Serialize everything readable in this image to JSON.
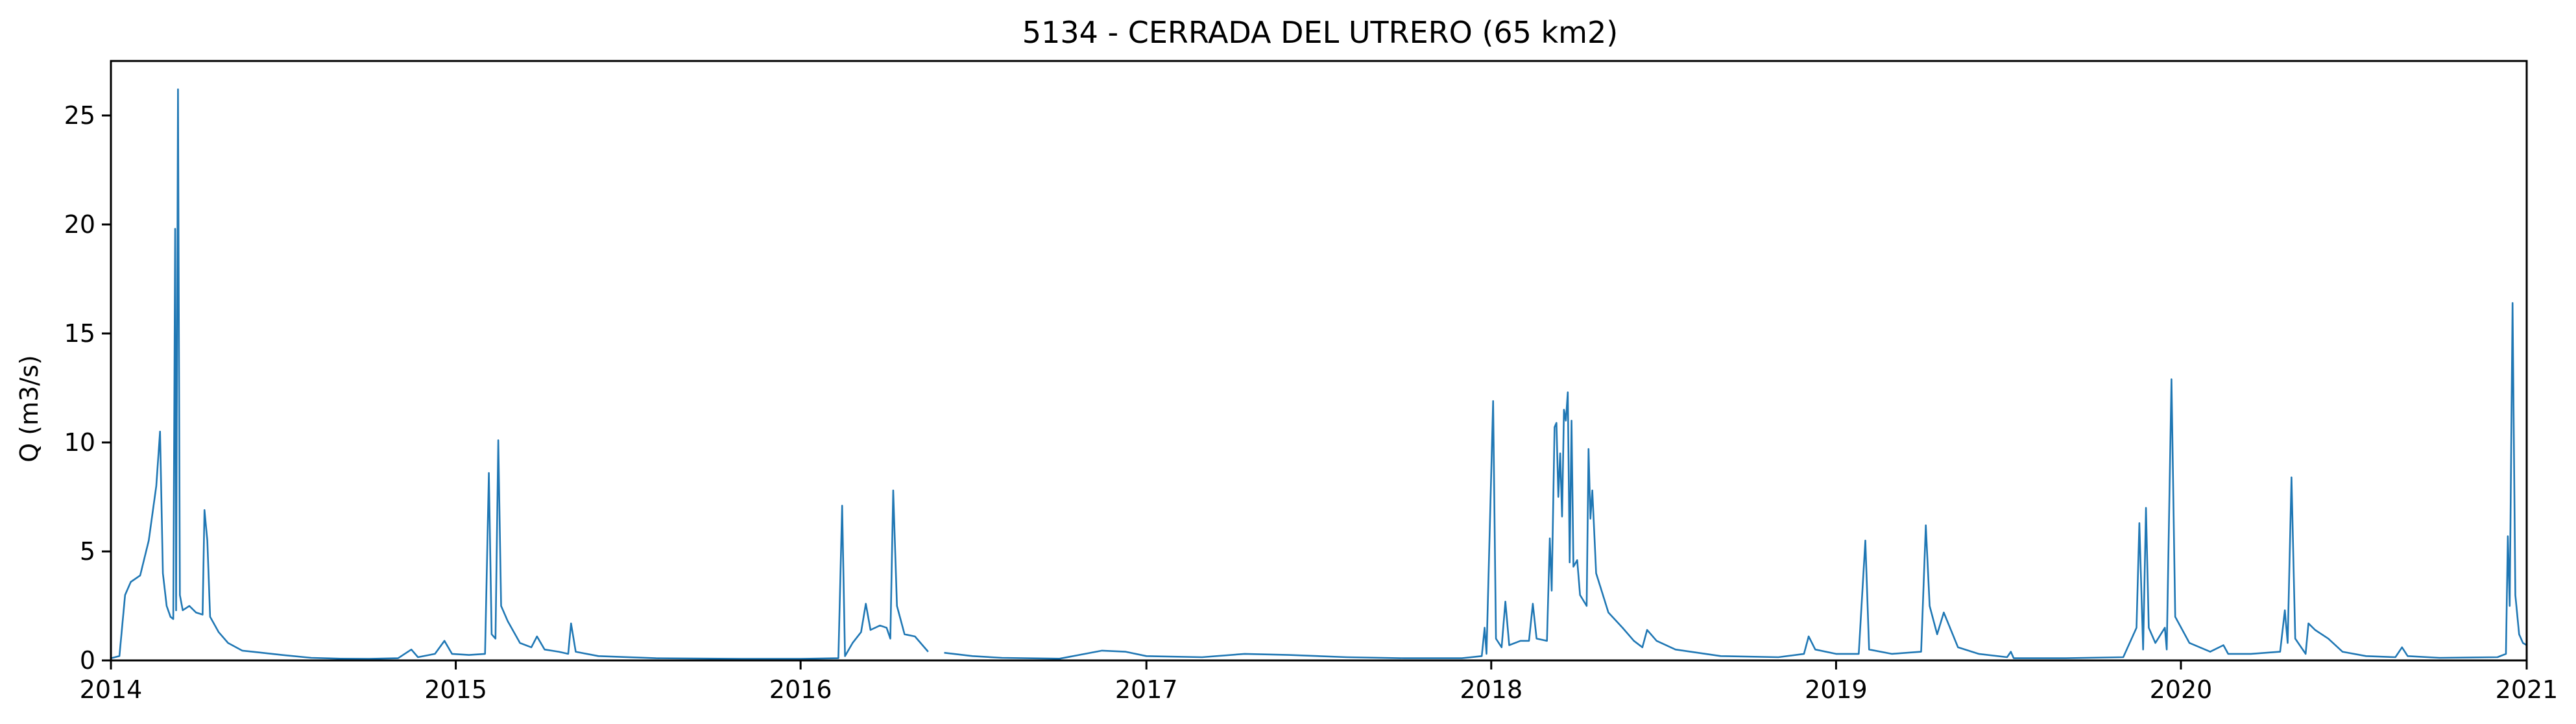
{
  "chart_data": {
    "type": "line",
    "title": "5134 - CERRADA DEL UTRERO (65 km2)",
    "xlabel": "",
    "ylabel": "Q (m3/s)",
    "xlim": [
      "2014-01-01",
      "2021-01-01"
    ],
    "ylim": [
      0,
      27.5
    ],
    "x_ticks": [
      "2014",
      "2015",
      "2016",
      "2017",
      "2018",
      "2019",
      "2020",
      "2021"
    ],
    "y_ticks": [
      0,
      5,
      10,
      15,
      20,
      25
    ],
    "grid": false,
    "color": "#1f77b4",
    "series": [
      {
        "points": [
          [
            "2014-01-01",
            0.1
          ],
          [
            "2014-01-10",
            0.2
          ],
          [
            "2014-01-16",
            3.0
          ],
          [
            "2014-01-22",
            3.6
          ],
          [
            "2014-02-01",
            3.9
          ],
          [
            "2014-02-10",
            5.5
          ],
          [
            "2014-02-18",
            8.0
          ],
          [
            "2014-02-22",
            10.5
          ],
          [
            "2014-02-25",
            4.0
          ],
          [
            "2014-03-01",
            2.5
          ],
          [
            "2014-03-05",
            2.0
          ],
          [
            "2014-03-08",
            1.9
          ],
          [
            "2014-03-10",
            19.8
          ],
          [
            "2014-03-11",
            2.3
          ],
          [
            "2014-03-13",
            26.2
          ],
          [
            "2014-03-15",
            3.0
          ],
          [
            "2014-03-18",
            2.3
          ],
          [
            "2014-03-25",
            2.5
          ],
          [
            "2014-04-01",
            2.2
          ],
          [
            "2014-04-08",
            2.1
          ],
          [
            "2014-04-10",
            6.9
          ],
          [
            "2014-04-13",
            5.5
          ],
          [
            "2014-04-16",
            2.0
          ],
          [
            "2014-04-25",
            1.3
          ],
          [
            "2014-05-05",
            0.8
          ],
          [
            "2014-05-20",
            0.45
          ],
          [
            "2014-06-10",
            0.35
          ],
          [
            "2014-07-01",
            0.25
          ],
          [
            "2014-08-01",
            0.12
          ],
          [
            "2014-09-01",
            0.08
          ],
          [
            "2014-10-01",
            0.07
          ],
          [
            "2014-11-01",
            0.1
          ],
          [
            "2014-11-15",
            0.5
          ],
          [
            "2014-11-22",
            0.15
          ],
          [
            "2014-12-10",
            0.3
          ],
          [
            "2014-12-20",
            0.9
          ],
          [
            "2014-12-28",
            0.3
          ],
          [
            "2015-01-15",
            0.25
          ],
          [
            "2015-02-01",
            0.3
          ],
          [
            "2015-02-05",
            8.6
          ],
          [
            "2015-02-08",
            1.2
          ],
          [
            "2015-02-12",
            1.0
          ],
          [
            "2015-02-15",
            10.1
          ],
          [
            "2015-02-18",
            2.5
          ],
          [
            "2015-02-25",
            1.8
          ],
          [
            "2015-03-10",
            0.8
          ],
          [
            "2015-03-22",
            0.6
          ],
          [
            "2015-03-28",
            1.1
          ],
          [
            "2015-04-05",
            0.5
          ],
          [
            "2015-04-20",
            0.4
          ],
          [
            "2015-04-30",
            0.3
          ],
          [
            "2015-05-03",
            1.7
          ],
          [
            "2015-05-08",
            0.4
          ],
          [
            "2015-06-01",
            0.2
          ],
          [
            "2015-08-01",
            0.1
          ],
          [
            "2015-11-01",
            0.07
          ],
          [
            "2016-01-01",
            0.07
          ],
          [
            "2016-02-10",
            0.1
          ],
          [
            "2016-02-14",
            7.1
          ],
          [
            "2016-02-17",
            0.2
          ],
          [
            "2016-02-25",
            0.8
          ],
          [
            "2016-03-05",
            1.3
          ],
          [
            "2016-03-10",
            2.6
          ],
          [
            "2016-03-15",
            1.4
          ],
          [
            "2016-03-25",
            1.6
          ],
          [
            "2016-04-01",
            1.5
          ],
          [
            "2016-04-05",
            1.0
          ],
          [
            "2016-04-08",
            7.8
          ],
          [
            "2016-04-12",
            2.5
          ],
          [
            "2016-04-20",
            1.2
          ],
          [
            "2016-05-01",
            1.1
          ],
          [
            "2016-05-15",
            0.4
          ],
          null,
          [
            "2016-06-01",
            0.35
          ],
          [
            "2016-07-01",
            0.2
          ],
          [
            "2016-08-01",
            0.12
          ],
          [
            "2016-10-01",
            0.08
          ],
          [
            "2016-11-15",
            0.45
          ],
          [
            "2016-12-10",
            0.4
          ],
          [
            "2017-01-01",
            0.2
          ],
          [
            "2017-03-01",
            0.15
          ],
          [
            "2017-04-15",
            0.3
          ],
          [
            "2017-06-01",
            0.25
          ],
          [
            "2017-08-01",
            0.15
          ],
          [
            "2017-10-01",
            0.1
          ],
          [
            "2017-12-01",
            0.1
          ],
          [
            "2017-12-22",
            0.2
          ],
          [
            "2017-12-25",
            1.5
          ],
          [
            "2017-12-27",
            0.3
          ],
          [
            "2018-01-03",
            11.9
          ],
          [
            "2018-01-06",
            1.0
          ],
          [
            "2018-01-12",
            0.6
          ],
          [
            "2018-01-16",
            2.7
          ],
          [
            "2018-01-20",
            0.7
          ],
          [
            "2018-02-01",
            0.9
          ],
          [
            "2018-02-10",
            0.9
          ],
          [
            "2018-02-14",
            2.6
          ],
          [
            "2018-02-18",
            1.0
          ],
          [
            "2018-03-01",
            0.9
          ],
          [
            "2018-03-04",
            5.6
          ],
          [
            "2018-03-06",
            3.2
          ],
          [
            "2018-03-09",
            10.7
          ],
          [
            "2018-03-11",
            10.9
          ],
          [
            "2018-03-13",
            7.5
          ],
          [
            "2018-03-15",
            9.5
          ],
          [
            "2018-03-17",
            6.6
          ],
          [
            "2018-03-19",
            11.5
          ],
          [
            "2018-03-21",
            11.0
          ],
          [
            "2018-03-23",
            12.3
          ],
          [
            "2018-03-25",
            4.5
          ],
          [
            "2018-03-27",
            11.0
          ],
          [
            "2018-03-29",
            4.3
          ],
          [
            "2018-04-02",
            4.6
          ],
          [
            "2018-04-05",
            3.0
          ],
          [
            "2018-04-12",
            2.5
          ],
          [
            "2018-04-14",
            9.7
          ],
          [
            "2018-04-16",
            6.5
          ],
          [
            "2018-04-18",
            7.8
          ],
          [
            "2018-04-22",
            4.0
          ],
          [
            "2018-05-05",
            2.2
          ],
          [
            "2018-05-20",
            1.5
          ],
          [
            "2018-06-01",
            0.9
          ],
          [
            "2018-06-10",
            0.6
          ],
          [
            "2018-06-15",
            1.4
          ],
          [
            "2018-06-25",
            0.9
          ],
          [
            "2018-07-15",
            0.5
          ],
          [
            "2018-09-01",
            0.2
          ],
          [
            "2018-11-01",
            0.15
          ],
          [
            "2018-11-28",
            0.3
          ],
          [
            "2018-12-03",
            1.1
          ],
          [
            "2018-12-10",
            0.5
          ],
          [
            "2019-01-01",
            0.3
          ],
          [
            "2019-01-25",
            0.3
          ],
          [
            "2019-02-01",
            5.5
          ],
          [
            "2019-02-05",
            0.5
          ],
          [
            "2019-03-01",
            0.3
          ],
          [
            "2019-04-01",
            0.4
          ],
          [
            "2019-04-06",
            6.2
          ],
          [
            "2019-04-10",
            2.5
          ],
          [
            "2019-04-18",
            1.2
          ],
          [
            "2019-04-25",
            2.2
          ],
          [
            "2019-05-10",
            0.6
          ],
          [
            "2019-06-01",
            0.3
          ],
          [
            "2019-07-01",
            0.15
          ],
          [
            "2019-07-05",
            0.4
          ],
          [
            "2019-07-08",
            0.1
          ],
          [
            "2019-09-01",
            0.1
          ],
          [
            "2019-11-01",
            0.15
          ],
          [
            "2019-11-15",
            1.5
          ],
          [
            "2019-11-18",
            6.3
          ],
          [
            "2019-11-22",
            0.5
          ],
          [
            "2019-11-25",
            7.0
          ],
          [
            "2019-11-28",
            1.5
          ],
          [
            "2019-12-05",
            0.8
          ],
          [
            "2019-12-15",
            1.5
          ],
          [
            "2019-12-17",
            0.5
          ],
          [
            "2019-12-22",
            12.9
          ],
          [
            "2019-12-26",
            2.0
          ],
          [
            "2020-01-10",
            0.8
          ],
          [
            "2020-02-01",
            0.4
          ],
          [
            "2020-02-15",
            0.7
          ],
          [
            "2020-02-20",
            0.3
          ],
          [
            "2020-03-15",
            0.3
          ],
          [
            "2020-04-15",
            0.4
          ],
          [
            "2020-04-20",
            2.3
          ],
          [
            "2020-04-23",
            0.8
          ],
          [
            "2020-04-27",
            8.4
          ],
          [
            "2020-05-01",
            1.0
          ],
          [
            "2020-05-12",
            0.3
          ],
          [
            "2020-05-15",
            1.7
          ],
          [
            "2020-05-22",
            1.4
          ],
          [
            "2020-06-05",
            1.0
          ],
          [
            "2020-06-20",
            0.4
          ],
          [
            "2020-07-15",
            0.2
          ],
          [
            "2020-08-15",
            0.15
          ],
          [
            "2020-08-22",
            0.6
          ],
          [
            "2020-08-28",
            0.2
          ],
          [
            "2020-10-01",
            0.12
          ],
          [
            "2020-12-01",
            0.15
          ],
          [
            "2020-12-10",
            0.3
          ],
          [
            "2020-12-12",
            5.7
          ],
          [
            "2020-12-14",
            2.5
          ],
          [
            "2020-12-17",
            16.4
          ],
          [
            "2020-12-20",
            3.0
          ],
          [
            "2020-12-24",
            1.2
          ],
          [
            "2020-12-28",
            0.8
          ],
          [
            "2021-01-01",
            0.7
          ]
        ]
      }
    ]
  }
}
